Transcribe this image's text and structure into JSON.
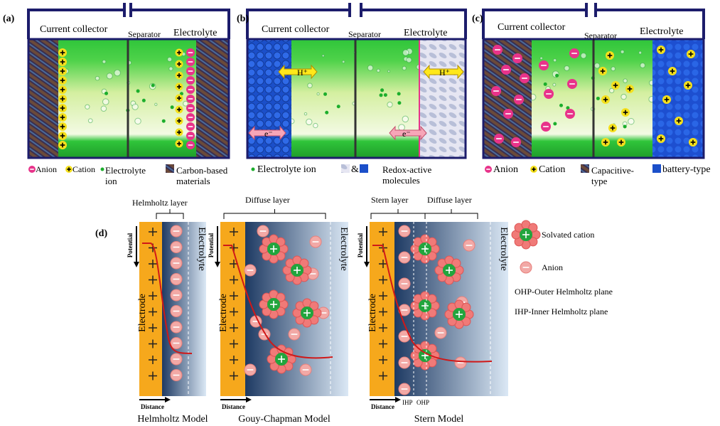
{
  "panel_a": {
    "label": "(a)",
    "current_collector": "Current collector",
    "separator": "Separator",
    "electrolyte": "Electrolyte",
    "legend": {
      "anion": "Anion",
      "cation": "Cation",
      "electrolyte_ion": "Electrolyte ion",
      "material": "Carbon-based materials"
    }
  },
  "panel_b": {
    "label": "(b)",
    "current_collector": "Current collector",
    "separator": "Separator",
    "electrolyte": "Electrolyte",
    "proton_left": "H⁺",
    "proton_right": "H⁺",
    "electron_left": "e⁻",
    "electron_right": "e⁻",
    "legend": {
      "electrolyte_ion": "Electrolyte ion",
      "ampersand": "&",
      "material": "Redox-active molecules"
    }
  },
  "panel_c": {
    "label": "(c)",
    "current_collector": "Current collector",
    "separator": "Separator",
    "electrolyte": "Electrolyte",
    "legend": {
      "anion": "Anion",
      "cation": "Cation",
      "capacitive": "Capacitive-type",
      "battery": "battery-type"
    }
  },
  "panel_d": {
    "label": "(d)",
    "legend": {
      "solvated_cation": "Solvated cation",
      "anion": "Anion",
      "ohp": "OHP-Outer Helmholtz plane",
      "ihp": "IHP-Inner Helmholtz plane"
    },
    "models": [
      {
        "title": "Helmholtz Model",
        "layers": [
          "Helmholtz layer"
        ],
        "potential": "Potential",
        "distance": "Distance",
        "electrode": "Electrode",
        "electrolyte": "Electrolyte"
      },
      {
        "title": "Gouy-Chapman Model",
        "layers": [
          "Diffuse layer"
        ],
        "potential": "Potential",
        "distance": "Distance",
        "electrode": "Electrode",
        "electrolyte": "Electrolyte"
      },
      {
        "title": "Stern Model",
        "layers": [
          "Stern layer",
          "Diffuse layer"
        ],
        "potential": "Potential",
        "distance": "Distance",
        "electrode": "Electrode",
        "electrolyte": "Electrolyte",
        "planes": [
          "IHP",
          "OHP"
        ]
      }
    ]
  }
}
